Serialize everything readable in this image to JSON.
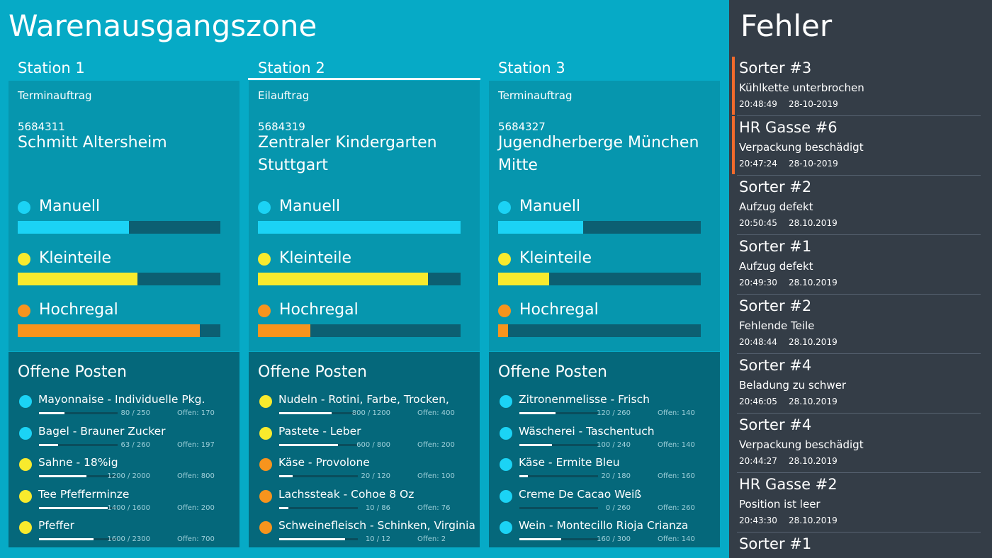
{
  "header": {
    "title": "Warenausgangszone"
  },
  "stations": [
    {
      "name": "Station 1",
      "active": false,
      "order_type": "Terminauftrag",
      "order_number": "5684311",
      "customer": "Schmitt Altersheim",
      "zones": [
        {
          "label": "Manuell",
          "color": "#1bd3f5",
          "progress": 55
        },
        {
          "label": "Kleinteile",
          "color": "#f8ea2d",
          "progress": 59
        },
        {
          "label": "Hochregal",
          "color": "#f7941d",
          "progress": 90
        }
      ],
      "open_title": "Offene Posten",
      "items": [
        {
          "name": "Mayonnaise - Individuelle Pkg.",
          "color": "#1bd3f5",
          "count": "80 / 250",
          "open": "Offen: 170"
        },
        {
          "name": "Bagel - Brauner Zucker",
          "color": "#1bd3f5",
          "count": "63 / 260",
          "open": "Offen: 197"
        },
        {
          "name": "Sahne - 18%ig",
          "color": "#f8ea2d",
          "count": "1200 / 2000",
          "open": "Offen: 800"
        },
        {
          "name": "Tee Pfefferminze",
          "color": "#f8ea2d",
          "count": "1400 / 1600",
          "open": "Offen: 200"
        },
        {
          "name": "Pfeffer",
          "color": "#f8ea2d",
          "count": "1600 / 2300",
          "open": "Offen: 700"
        }
      ]
    },
    {
      "name": "Station 2",
      "active": true,
      "order_type": "Eilauftrag",
      "order_number": "5684319",
      "customer": "Zentraler Kindergarten Stuttgart",
      "zones": [
        {
          "label": "Manuell",
          "color": "#1bd3f5",
          "progress": 100
        },
        {
          "label": "Kleinteile",
          "color": "#f8ea2d",
          "progress": 84
        },
        {
          "label": "Hochregal",
          "color": "#f7941d",
          "progress": 26
        }
      ],
      "open_title": "Offene Posten",
      "items": [
        {
          "name": "Nudeln - Rotini, Farbe, Trocken,",
          "color": "#f8ea2d",
          "count": "800 / 1200",
          "open": "Offen: 400"
        },
        {
          "name": "Pastete - Leber",
          "color": "#f8ea2d",
          "count": "600 / 800",
          "open": "Offen: 200"
        },
        {
          "name": "Käse - Provolone",
          "color": "#f7941d",
          "count": "20 / 120",
          "open": "Offen: 100"
        },
        {
          "name": "Lachssteak - Cohoe 8 Oz",
          "color": "#f7941d",
          "count": "10 / 86",
          "open": "Offen: 76"
        },
        {
          "name": "Schweinefleisch - Schinken, Virginia",
          "color": "#f7941d",
          "count": "10 / 12",
          "open": "Offen: 2"
        }
      ]
    },
    {
      "name": "Station 3",
      "active": false,
      "order_type": "Terminauftrag",
      "order_number": "5684327",
      "customer": "Jugendherberge München Mitte",
      "zones": [
        {
          "label": "Manuell",
          "color": "#1bd3f5",
          "progress": 42
        },
        {
          "label": "Kleinteile",
          "color": "#f8ea2d",
          "progress": 25
        },
        {
          "label": "Hochregal",
          "color": "#f7941d",
          "progress": 5
        }
      ],
      "open_title": "Offene Posten",
      "items": [
        {
          "name": "Zitronenmelisse - Frisch",
          "color": "#1bd3f5",
          "count": "120 / 260",
          "open": "Offen: 140"
        },
        {
          "name": "Wäscherei - Taschentuch",
          "color": "#1bd3f5",
          "count": "100 / 240",
          "open": "Offen: 140"
        },
        {
          "name": "Käse - Ermite Bleu",
          "color": "#1bd3f5",
          "count": "20 / 180",
          "open": "Offen: 160"
        },
        {
          "name": "Creme De Cacao Weiß",
          "color": "#1bd3f5",
          "count": "0 / 260",
          "open": "Offen: 260"
        },
        {
          "name": "Wein - Montecillo Rioja Crianza",
          "color": "#1bd3f5",
          "count": "160 / 300",
          "open": "Offen: 140"
        }
      ]
    }
  ],
  "errors": {
    "title": "Fehler",
    "entries": [
      {
        "title": "Sorter #3",
        "message": "Kühlkette unterbrochen",
        "time": "20:48:49",
        "date": "28-10-2019",
        "highlight": true
      },
      {
        "title": "HR Gasse #6",
        "message": "Verpackung beschädigt",
        "time": "20:47:24",
        "date": "28-10-2019",
        "highlight": true
      },
      {
        "title": "Sorter #2",
        "message": "Aufzug defekt",
        "time": "20:50:45",
        "date": "28.10.2019",
        "highlight": false
      },
      {
        "title": "Sorter #1",
        "message": "Aufzug defekt",
        "time": "20:49:30",
        "date": "28.10.2019",
        "highlight": false
      },
      {
        "title": "Sorter #2",
        "message": "Fehlende Teile",
        "time": "20:48:44",
        "date": "28.10.2019",
        "highlight": false
      },
      {
        "title": "Sorter #4",
        "message": "Beladung zu schwer",
        "time": "20:46:05",
        "date": "28.10.2019",
        "highlight": false
      },
      {
        "title": "Sorter #4",
        "message": "Verpackung beschädigt",
        "time": "20:44:27",
        "date": "28.10.2019",
        "highlight": false
      },
      {
        "title": "HR Gasse #2",
        "message": "Position ist leer",
        "time": "20:43:30",
        "date": "28.10.2019",
        "highlight": false
      },
      {
        "title": "Sorter #1",
        "highlight": false
      }
    ]
  }
}
